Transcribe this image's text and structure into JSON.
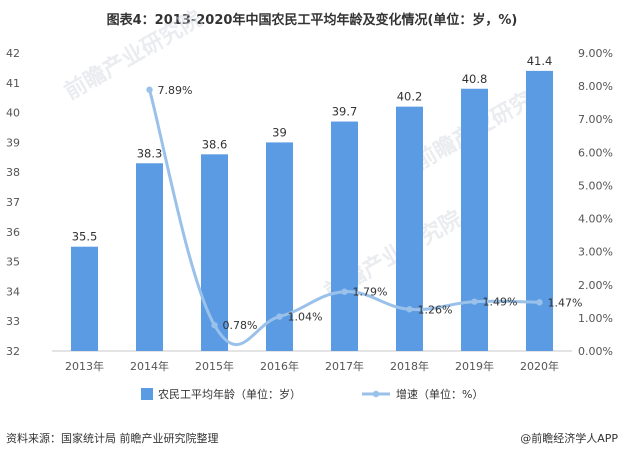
{
  "title": "图表4：2013-2020年中国农民工平均年龄及变化情况(单位：岁，%)",
  "source": "资料来源：国家统计局 前瞻产业研究院整理",
  "brand": "@前瞻经济学人APP",
  "watermark": "前瞻产业研究院",
  "colors": {
    "bar": "#5b9be3",
    "line": "#9ac1ea",
    "grid": "#e6e6e6"
  },
  "chart_data": {
    "type": "bar",
    "categories": [
      "2013年",
      "2014年",
      "2015年",
      "2016年",
      "2017年",
      "2018年",
      "2019年",
      "2020年"
    ],
    "series": [
      {
        "name": "农民工平均年龄（单位：岁）",
        "type": "bar",
        "axis": "left",
        "values": [
          35.5,
          38.3,
          38.6,
          39,
          39.7,
          40.2,
          40.8,
          41.4
        ],
        "labels": [
          "35.5",
          "38.3",
          "38.6",
          "39",
          "39.7",
          "40.2",
          "40.8",
          "41.4"
        ]
      },
      {
        "name": "增速（单位：%）",
        "type": "line",
        "axis": "right",
        "values": [
          null,
          7.89,
          0.78,
          1.04,
          1.79,
          1.26,
          1.49,
          1.47
        ],
        "labels": [
          "",
          "7.89%",
          "0.78%",
          "1.04%",
          "1.79%",
          "1.26%",
          "1.49%",
          "1.47%"
        ]
      }
    ],
    "y_left": {
      "min": 32,
      "max": 42,
      "ticks": [
        "32",
        "33",
        "34",
        "35",
        "36",
        "37",
        "38",
        "39",
        "40",
        "41",
        "42"
      ]
    },
    "y_right": {
      "min": 0,
      "max": 9,
      "ticks": [
        "0.00%",
        "1.00%",
        "2.00%",
        "3.00%",
        "4.00%",
        "5.00%",
        "6.00%",
        "7.00%",
        "8.00%",
        "9.00%"
      ]
    },
    "grid": false,
    "legend_position": "bottom"
  }
}
